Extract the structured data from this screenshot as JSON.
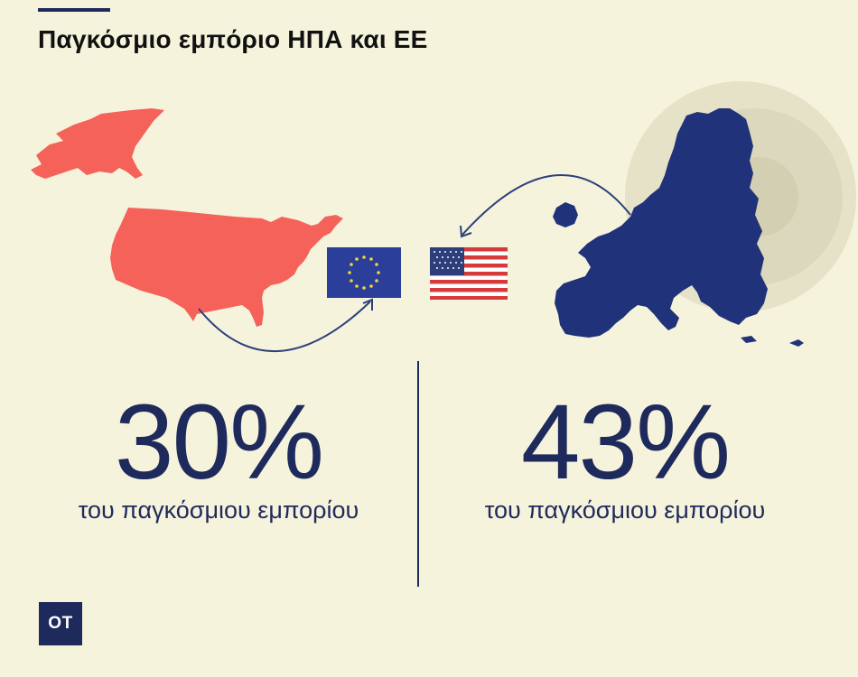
{
  "header": {
    "title": "Παγκόσμιο εμπόριο ΗΠΑ και ΕΕ"
  },
  "colors": {
    "background": "#f6f3dc",
    "usa_map": "#f4625a",
    "eu_map": "#203279",
    "text_navy": "#1f2a5c"
  },
  "icons": [
    "usa-map-icon",
    "eu-map-icon",
    "eu-flag-icon",
    "us-flag-icon",
    "arrow-icon"
  ],
  "stats": {
    "usa": {
      "value": "30%",
      "caption": "του παγκόσμιου εμπορίου"
    },
    "eu": {
      "value": "43%",
      "caption": "του παγκόσμιου εμπορίου"
    }
  },
  "logo": {
    "text": "ΟΤ"
  }
}
